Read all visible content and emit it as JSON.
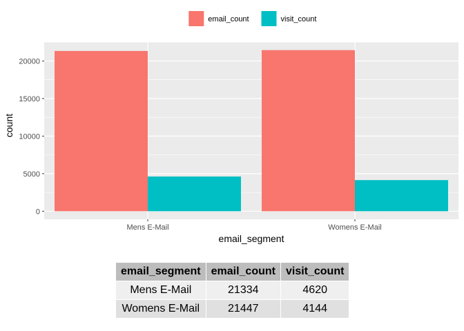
{
  "chart_data": {
    "type": "bar",
    "title": "",
    "xlabel": "email_segment",
    "ylabel": "count",
    "categories": [
      "Mens E-Mail",
      "Womens E-Mail"
    ],
    "series": [
      {
        "name": "email_count",
        "values": [
          21334,
          21447
        ],
        "color": "#F8766D"
      },
      {
        "name": "visit_count",
        "values": [
          4620,
          4144
        ],
        "color": "#00BFC4"
      }
    ],
    "ylim": [
      -1072,
      22519
    ],
    "yticks": [
      0,
      5000,
      10000,
      15000,
      20000
    ],
    "ytick_labels": [
      "0",
      "5000",
      "10000",
      "15000",
      "20000"
    ],
    "grid": true,
    "legend_position": "top",
    "panel_background": "#EBEBEB"
  },
  "table": {
    "headers": [
      "email_segment",
      "email_count",
      "visit_count"
    ],
    "rows": [
      [
        "Mens E-Mail",
        "21334",
        "4620"
      ],
      [
        "Womens E-Mail",
        "21447",
        "4144"
      ]
    ]
  }
}
